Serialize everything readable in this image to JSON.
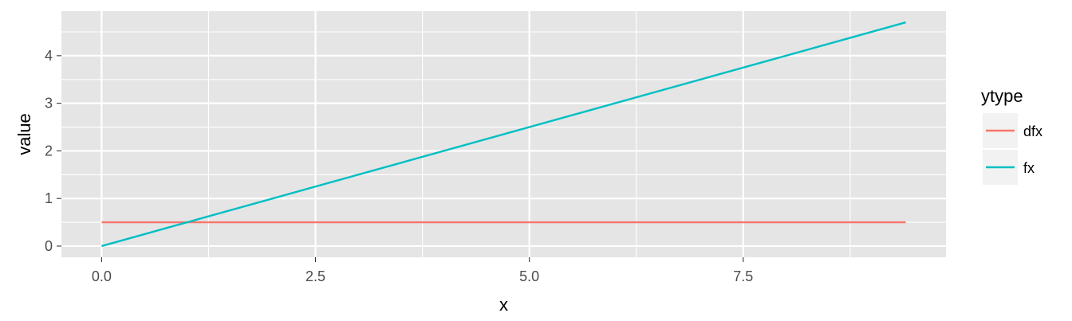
{
  "chart_data": {
    "type": "line",
    "xlabel": "x",
    "ylabel": "value",
    "xlim": [
      -0.47,
      9.87
    ],
    "ylim": [
      -0.235,
      4.935
    ],
    "x_ticks": [
      0.0,
      2.5,
      5.0,
      7.5
    ],
    "x_tick_labels": [
      "0.0",
      "2.5",
      "5.0",
      "7.5"
    ],
    "x_minor_ticks": [
      1.25,
      3.75,
      6.25,
      8.75
    ],
    "y_ticks": [
      0,
      1,
      2,
      3,
      4
    ],
    "y_tick_labels": [
      "0",
      "1",
      "2",
      "3",
      "4"
    ],
    "y_minor_ticks": [
      0.5,
      1.5,
      2.5,
      3.5,
      4.5
    ],
    "grid": true,
    "panel_background": "#e5e5e5",
    "grid_color": "#ffffff",
    "legend": {
      "title": "ytype",
      "placement": "right"
    },
    "series": [
      {
        "name": "dfx",
        "color": "#f8766d",
        "x": [
          0,
          9.4
        ],
        "y": [
          0.5,
          0.5
        ]
      },
      {
        "name": "fx",
        "color": "#00bfc4",
        "x": [
          0,
          9.4
        ],
        "y": [
          0,
          4.7
        ]
      }
    ]
  }
}
